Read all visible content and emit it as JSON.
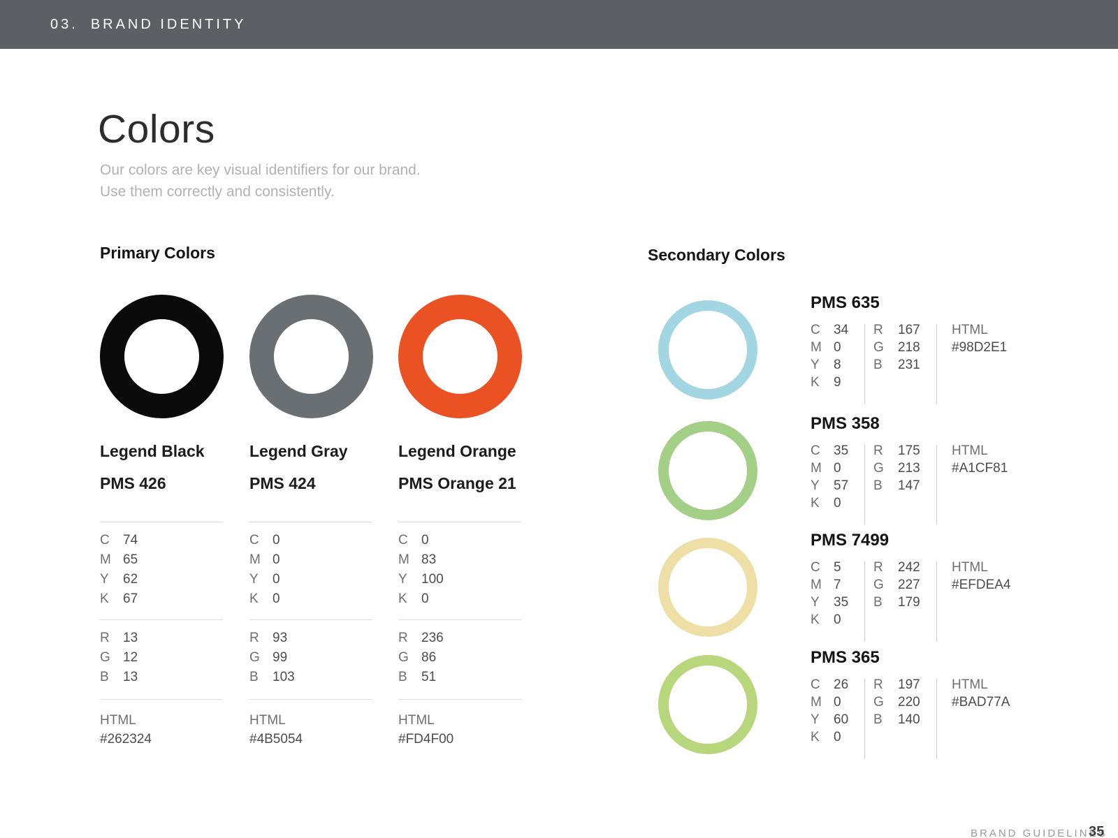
{
  "header": {
    "section_number": "03.",
    "section_title": "BRAND IDENTITY"
  },
  "intro": {
    "title": "Colors",
    "subtitle_line1": "Our colors are key visual identifiers for our brand.",
    "subtitle_line2": "Use them correctly and consistently."
  },
  "labels": {
    "cmyk": [
      "C",
      "M",
      "Y",
      "K"
    ],
    "rgb": [
      "R",
      "G",
      "B"
    ],
    "html": "HTML"
  },
  "primary": {
    "heading": "Primary Colors",
    "colors": [
      {
        "name": "Legend Black",
        "pms": "PMS 426",
        "swatch_color": "#0B0A0B",
        "cmyk": [
          "74",
          "65",
          "62",
          "67"
        ],
        "rgb": [
          "13",
          "12",
          "13"
        ],
        "hex": "#262324"
      },
      {
        "name": "Legend Gray",
        "pms": "PMS 424",
        "swatch_color": "#6A6F73",
        "cmyk": [
          "0",
          "0",
          "0",
          "0"
        ],
        "rgb": [
          "93",
          "99",
          "103"
        ],
        "hex": "#4B5054"
      },
      {
        "name": "Legend Orange",
        "pms": "PMS Orange 21",
        "swatch_color": "#EA5123",
        "cmyk": [
          "0",
          "83",
          "100",
          "0"
        ],
        "rgb": [
          "236",
          "86",
          "51"
        ],
        "hex": "#FD4F00"
      }
    ]
  },
  "secondary": {
    "heading": "Secondary Colors",
    "colors": [
      {
        "pms": "PMS 635",
        "swatch_color": "#A3D6E3",
        "cmyk": [
          "34",
          "0",
          "8",
          "9"
        ],
        "rgb": [
          "167",
          "218",
          "231"
        ],
        "hex": "#98D2E1"
      },
      {
        "pms": "PMS 358",
        "swatch_color": "#A4CF86",
        "cmyk": [
          "35",
          "0",
          "57",
          "0"
        ],
        "rgb": [
          "175",
          "213",
          "147"
        ],
        "hex": "#A1CF81"
      },
      {
        "pms": "PMS 7499",
        "swatch_color": "#EDDFA6",
        "cmyk": [
          "5",
          "7",
          "35",
          "0"
        ],
        "rgb": [
          "242",
          "227",
          "179"
        ],
        "hex": "#EFDEA4"
      },
      {
        "pms": "PMS 365",
        "swatch_color": "#B8D77C",
        "cmyk": [
          "26",
          "0",
          "60",
          "0"
        ],
        "rgb": [
          "197",
          "220",
          "140"
        ],
        "hex": "#BAD77A"
      }
    ]
  },
  "footer": {
    "label": "BRAND GUIDELINES",
    "page_number": "35"
  }
}
